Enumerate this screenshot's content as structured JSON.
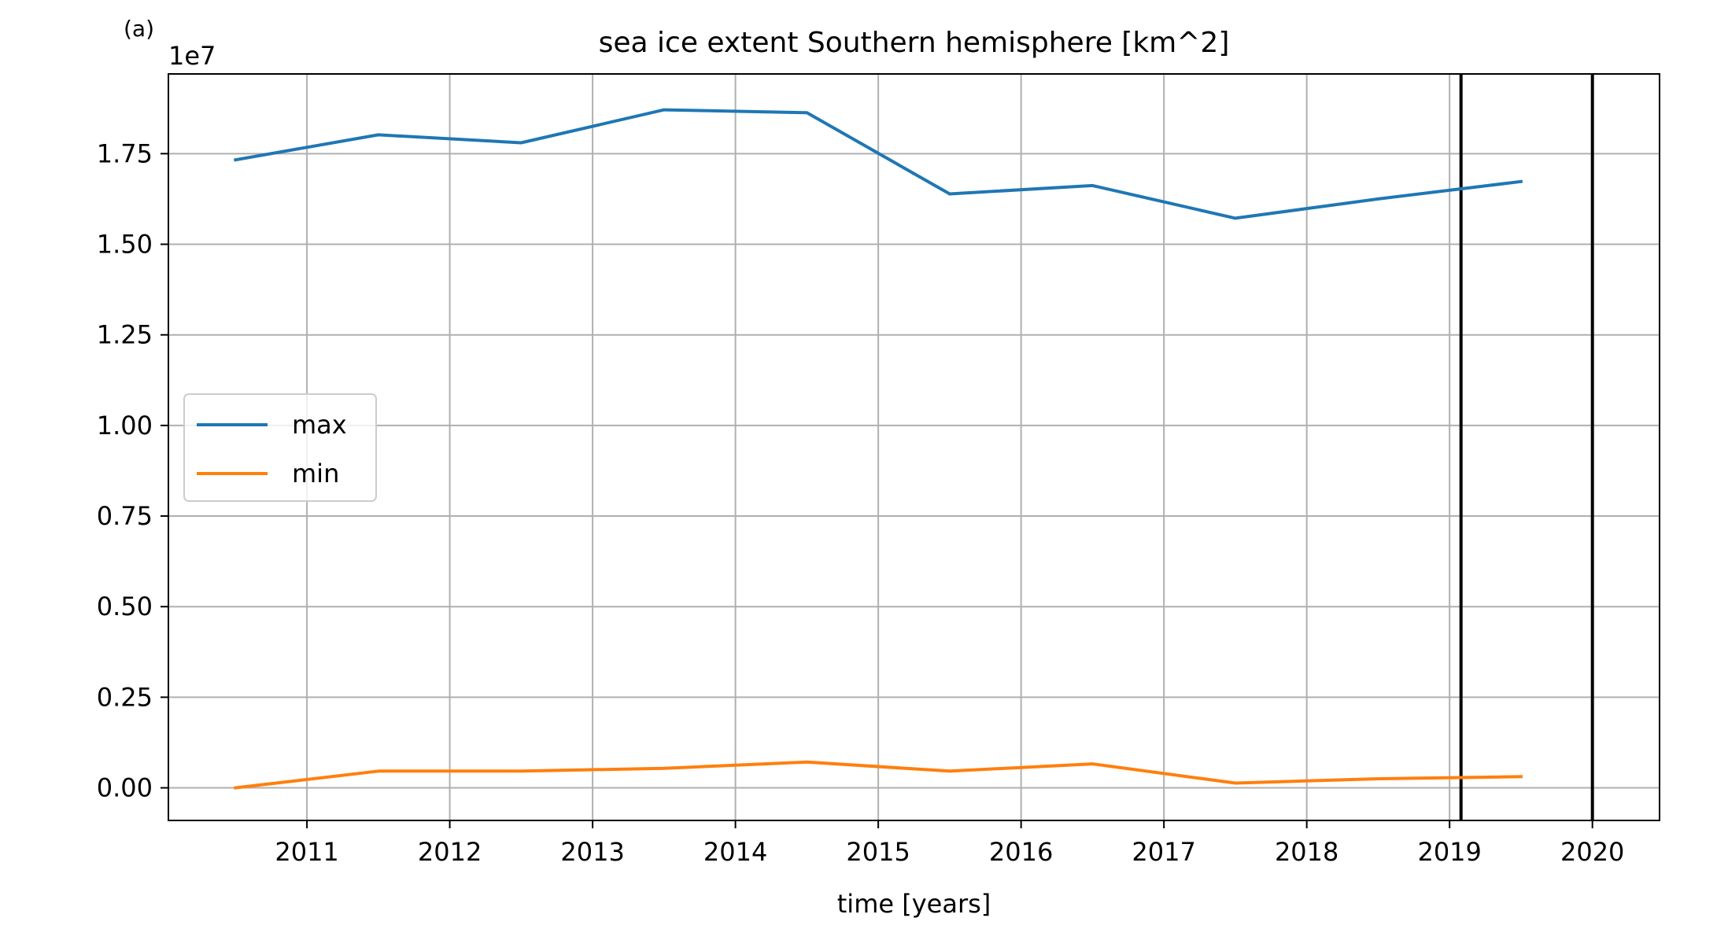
{
  "panel_label": "(a)",
  "colors": {
    "max": "#1f77b4",
    "min": "#ff7f0e",
    "grid": "#b0b0b0",
    "vline": "#000000"
  },
  "chart_data": {
    "type": "line",
    "title": "sea ice extent Southern hemisphere [km^2]",
    "xlabel": "time [years]",
    "ylabel": "",
    "y_offset_label": "1e7",
    "y_scale_factor": 10000000,
    "xlim": [
      2010.03,
      2020.47
    ],
    "ylim": [
      -0.09,
      1.97
    ],
    "x_ticks": [
      2011,
      2012,
      2013,
      2014,
      2015,
      2016,
      2017,
      2018,
      2019,
      2020
    ],
    "x_tick_labels": [
      "2011",
      "2012",
      "2013",
      "2014",
      "2015",
      "2016",
      "2017",
      "2018",
      "2019",
      "2020"
    ],
    "y_ticks": [
      0.0,
      0.25,
      0.5,
      0.75,
      1.0,
      1.25,
      1.5,
      1.75
    ],
    "y_tick_labels": [
      "0.00",
      "0.25",
      "0.50",
      "0.75",
      "1.00",
      "1.25",
      "1.50",
      "1.75"
    ],
    "grid": true,
    "legend_position": "center-left",
    "x": [
      2010.5,
      2011.5,
      2012.5,
      2013.5,
      2014.5,
      2015.5,
      2016.5,
      2017.5,
      2018.5,
      2019.5
    ],
    "series": [
      {
        "name": "max",
        "color": "#1f77b4",
        "values": [
          1.733,
          1.802,
          1.78,
          1.871,
          1.863,
          1.639,
          1.662,
          1.572,
          1.625,
          1.673
        ]
      },
      {
        "name": "min",
        "color": "#ff7f0e",
        "values": [
          0.0,
          0.046,
          0.046,
          0.054,
          0.071,
          0.046,
          0.066,
          0.013,
          0.025,
          0.031
        ]
      }
    ],
    "vertical_lines": [
      2019.08,
      2020.0
    ]
  }
}
